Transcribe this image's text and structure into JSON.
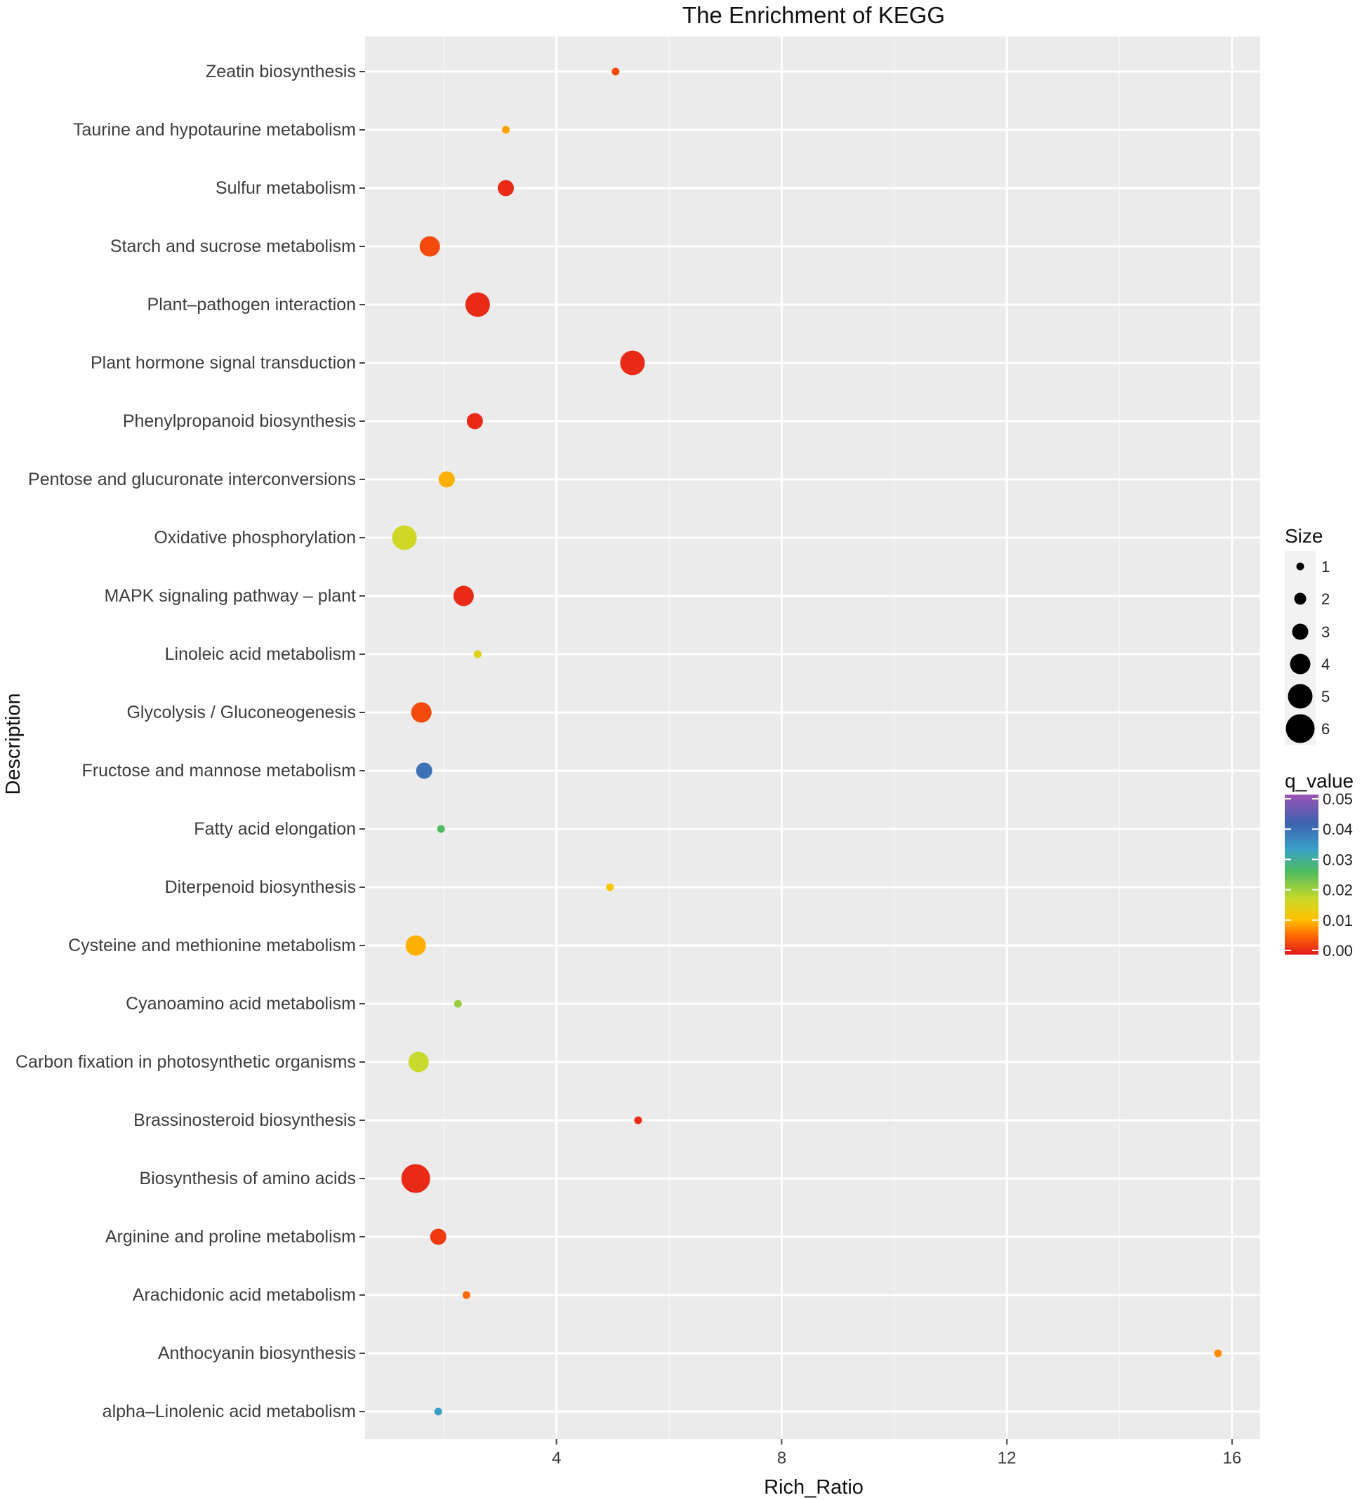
{
  "chart_data": {
    "type": "scatter",
    "title": "The Enrichment of KEGG",
    "xlabel": "Rich_Ratio",
    "ylabel": "Description",
    "xlim": [
      0.6,
      16.5
    ],
    "xticks": [
      4,
      8,
      12,
      16
    ],
    "grid": true,
    "categories": [
      "Zeatin biosynthesis",
      "Taurine and hypotaurine metabolism",
      "Sulfur metabolism",
      "Starch and sucrose metabolism",
      "Plant–pathogen interaction",
      "Plant hormone signal transduction",
      "Phenylpropanoid biosynthesis",
      "Pentose and glucuronate interconversions",
      "Oxidative phosphorylation",
      "MAPK signaling pathway – plant",
      "Linoleic acid metabolism",
      "Glycolysis / Gluconeogenesis",
      "Fructose and mannose metabolism",
      "Fatty acid elongation",
      "Diterpenoid biosynthesis",
      "Cysteine and methionine metabolism",
      "Cyanoamino acid metabolism",
      "Carbon fixation in photosynthetic organisms",
      "Brassinosteroid biosynthesis",
      "Biosynthesis of amino acids",
      "Arginine and proline metabolism",
      "Arachidonic acid metabolism",
      "Anthocyanin biosynthesis",
      "alpha–Linolenic acid metabolism"
    ],
    "points": [
      {
        "description": "Zeatin biosynthesis",
        "rich_ratio": 5.05,
        "size": 1,
        "q_value": 0.003
      },
      {
        "description": "Taurine and hypotaurine metabolism",
        "rich_ratio": 3.1,
        "size": 1,
        "q_value": 0.008
      },
      {
        "description": "Sulfur metabolism",
        "rich_ratio": 3.1,
        "size": 3,
        "q_value": 0.001
      },
      {
        "description": "Starch and sucrose metabolism",
        "rich_ratio": 1.75,
        "size": 4,
        "q_value": 0.003
      },
      {
        "description": "Plant–pathogen interaction",
        "rich_ratio": 2.6,
        "size": 5,
        "q_value": 0.001
      },
      {
        "description": "Plant hormone signal transduction",
        "rich_ratio": 5.35,
        "size": 5,
        "q_value": 0.001
      },
      {
        "description": "Phenylpropanoid biosynthesis",
        "rich_ratio": 2.55,
        "size": 3,
        "q_value": 0.001
      },
      {
        "description": "Pentose and glucuronate interconversions",
        "rich_ratio": 2.05,
        "size": 3,
        "q_value": 0.009
      },
      {
        "description": "Oxidative phosphorylation",
        "rich_ratio": 1.3,
        "size": 5,
        "q_value": 0.016
      },
      {
        "description": "MAPK signaling pathway – plant",
        "rich_ratio": 2.35,
        "size": 4,
        "q_value": 0.001
      },
      {
        "description": "Linoleic acid metabolism",
        "rich_ratio": 2.6,
        "size": 1,
        "q_value": 0.014
      },
      {
        "description": "Glycolysis / Gluconeogenesis",
        "rich_ratio": 1.6,
        "size": 4,
        "q_value": 0.003
      },
      {
        "description": "Fructose and mannose metabolism",
        "rich_ratio": 1.65,
        "size": 3,
        "q_value": 0.038
      },
      {
        "description": "Fatty acid elongation",
        "rich_ratio": 1.95,
        "size": 1,
        "q_value": 0.025
      },
      {
        "description": "Diterpenoid biosynthesis",
        "rich_ratio": 4.95,
        "size": 1,
        "q_value": 0.011
      },
      {
        "description": "Cysteine and methionine metabolism",
        "rich_ratio": 1.5,
        "size": 4,
        "q_value": 0.009
      },
      {
        "description": "Cyanoamino acid metabolism",
        "rich_ratio": 2.25,
        "size": 1,
        "q_value": 0.02
      },
      {
        "description": "Carbon fixation in photosynthetic organisms",
        "rich_ratio": 1.55,
        "size": 4,
        "q_value": 0.017
      },
      {
        "description": "Brassinosteroid biosynthesis",
        "rich_ratio": 5.45,
        "size": 1,
        "q_value": 0.001
      },
      {
        "description": "Biosynthesis of amino acids",
        "rich_ratio": 1.5,
        "size": 6,
        "q_value": 0.001
      },
      {
        "description": "Arginine and proline metabolism",
        "rich_ratio": 1.9,
        "size": 3,
        "q_value": 0.002
      },
      {
        "description": "Arachidonic acid metabolism",
        "rich_ratio": 2.4,
        "size": 1,
        "q_value": 0.005
      },
      {
        "description": "Anthocyanin biosynthesis",
        "rich_ratio": 15.75,
        "size": 1,
        "q_value": 0.007
      },
      {
        "description": "alpha–Linolenic acid metabolism",
        "rich_ratio": 1.9,
        "size": 1,
        "q_value": 0.032
      }
    ],
    "legend": {
      "size_title": "Size",
      "size_breaks": [
        1,
        2,
        3,
        4,
        5,
        6
      ],
      "color_title": "q_value",
      "color_breaks": [
        "0.00",
        "0.01",
        "0.02",
        "0.03",
        "0.04",
        "0.05"
      ],
      "color_scale": [
        "#e41a1c",
        "#ff8c00",
        "#ffd700",
        "#c6d82e",
        "#4dbb5f",
        "#3d9fc7",
        "#3d62b0",
        "#8e57b0"
      ],
      "placement": "right"
    },
    "colors": {
      "panel_background": "#ebebeb",
      "gridline": "#ffffff"
    }
  }
}
